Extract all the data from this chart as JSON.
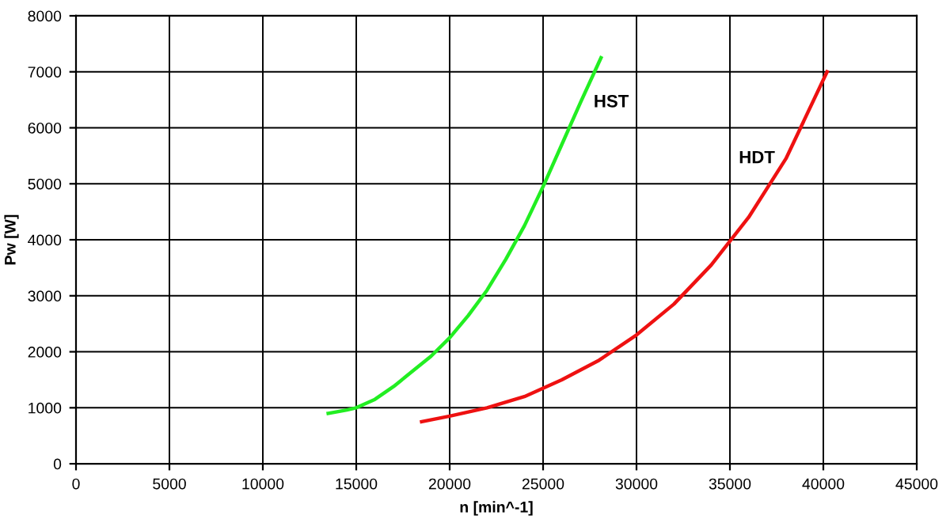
{
  "chart_data": {
    "type": "line",
    "xlabel": "n [min^-1]",
    "ylabel": "Pw [W]",
    "xlim": [
      0,
      45000
    ],
    "xticks": [
      0,
      5000,
      10000,
      15000,
      20000,
      25000,
      30000,
      35000,
      40000,
      45000
    ],
    "ylim": [
      0,
      8000
    ],
    "yticks": [
      0,
      1000,
      2000,
      3000,
      4000,
      5000,
      6000,
      7000,
      8000
    ],
    "grid": true,
    "marker": "none",
    "line_style": "solid",
    "series": [
      {
        "name": "HST",
        "color": "#22ee22",
        "x": [
          13500,
          14500,
          15000,
          16000,
          17000,
          18000,
          19000,
          20000,
          21000,
          22000,
          23000,
          24000,
          25000,
          26000,
          27000,
          28100
        ],
        "values": [
          900,
          960,
          1000,
          1150,
          1380,
          1650,
          1920,
          2250,
          2650,
          3100,
          3650,
          4250,
          4950,
          5700,
          6450,
          7250
        ]
      },
      {
        "name": "HDT",
        "color": "#ee1111",
        "x": [
          18500,
          20000,
          22000,
          24000,
          26000,
          28000,
          30000,
          32000,
          34000,
          36000,
          38000,
          40200
        ],
        "values": [
          750,
          850,
          1000,
          1200,
          1500,
          1850,
          2300,
          2850,
          3550,
          4400,
          5450,
          7000
        ]
      }
    ]
  }
}
